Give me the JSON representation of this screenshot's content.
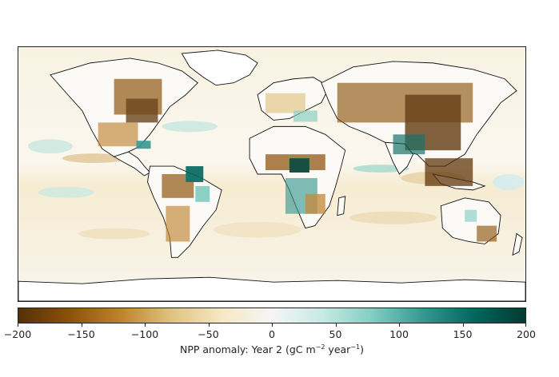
{
  "map": {
    "projection": "PlateCarree",
    "extent_lon": [
      -180,
      180
    ],
    "extent_lat": [
      -90,
      90
    ],
    "description_colors": {
      "strong_negative": "#5a3105",
      "negative": "#b87d2b",
      "weak_negative": "#efd9a8",
      "neutral": "#f7f5f0",
      "weak_positive": "#bfe6e0",
      "positive": "#3d9c92",
      "strong_positive": "#0b4a40"
    }
  },
  "colorbar": {
    "ticks": [
      "−200",
      "−150",
      "−100",
      "−50",
      "0",
      "50",
      "100",
      "150",
      "200"
    ],
    "tick_values": [
      -200,
      -150,
      -100,
      -50,
      0,
      50,
      100,
      150,
      200
    ],
    "vmin": -200,
    "vmax": 200,
    "colormap": "BrBG",
    "stops": [
      "#543005",
      "#8c510a",
      "#bf812d",
      "#dfc27d",
      "#f6e8c3",
      "#f5f5f5",
      "#c7eae5",
      "#80cdc1",
      "#35978f",
      "#01665e",
      "#003c30"
    ],
    "label_prefix": "NPP anomaly: Year 2 (gC m",
    "label_exp1": "−2",
    "label_mid": " year",
    "label_exp2": "−1",
    "label_suffix": ")"
  }
}
